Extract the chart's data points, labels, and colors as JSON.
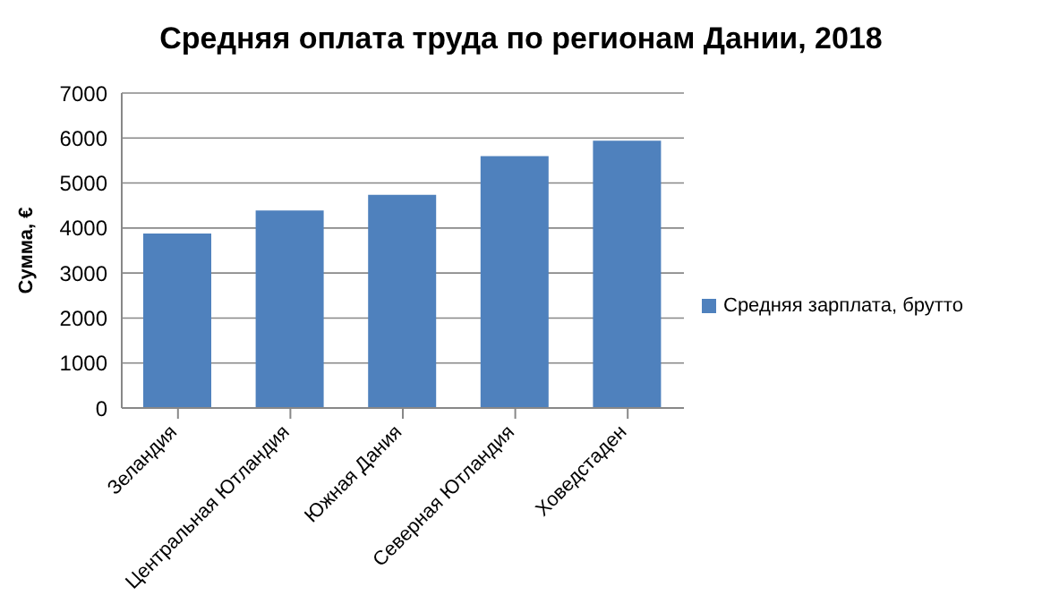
{
  "chart_data": {
    "type": "bar",
    "title": "Средняя оплата труда по регионам Дании, 2018",
    "ylabel": "Сумма, €",
    "categories": [
      "Зеландия",
      "Центральная Ютландия",
      "Южная Дания",
      "Северная Ютландия",
      "Ховедстаден"
    ],
    "series": [
      {
        "name": "Средняя зарплата, брутто",
        "color": "#4f81bd",
        "values": [
          3880,
          4390,
          4740,
          5600,
          5940
        ]
      }
    ],
    "ylim": [
      0,
      7000
    ],
    "yticks": [
      0,
      1000,
      2000,
      3000,
      4000,
      5000,
      6000,
      7000
    ],
    "grid": "y",
    "legend": "right"
  }
}
